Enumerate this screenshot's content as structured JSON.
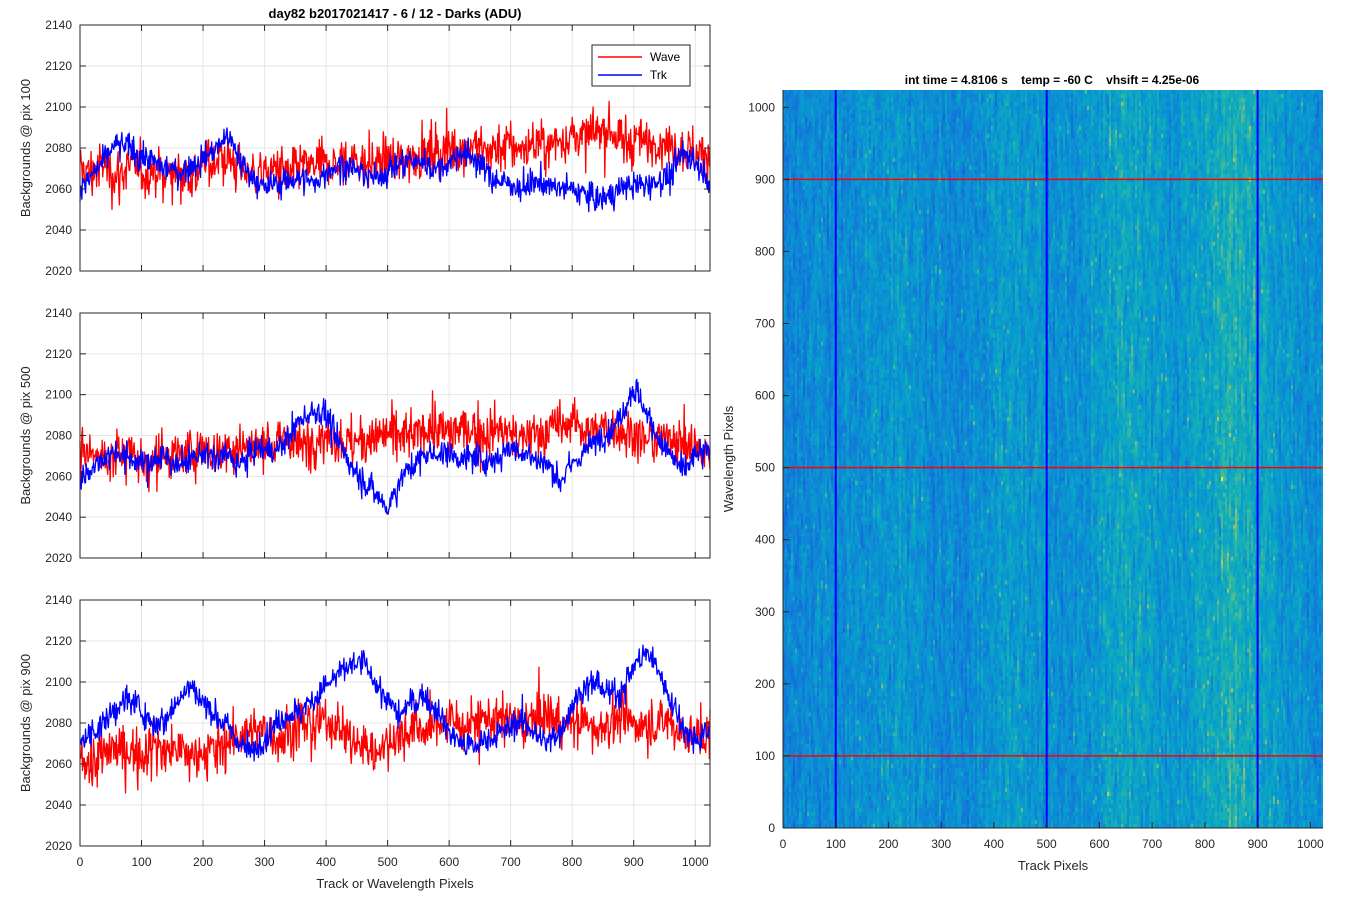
{
  "figure": {
    "main_title": "day82 b2017021417 - 6 / 12 - Darks (ADU)",
    "image_title": "int time = 4.8106 s    temp = -60 C    vhsift = 4.25e-06"
  },
  "colors": {
    "wave": "#ff0000",
    "trk": "#0000ff",
    "grid": "#e6e6e6",
    "axis": "#262626"
  },
  "chart_data": [
    {
      "type": "line",
      "title": "day82 b2017021417 - 6 / 12 - Darks (ADU)",
      "ylabel": "Backgrounds @ pix 100",
      "xlabel": "",
      "xlim": [
        0,
        1024
      ],
      "ylim": [
        2020,
        2140
      ],
      "xticks": [
        0,
        100,
        200,
        300,
        400,
        500,
        600,
        700,
        800,
        900,
        1000
      ],
      "yticks": [
        2020,
        2040,
        2060,
        2080,
        2100,
        2120,
        2140
      ],
      "show_xtick_labels": false,
      "grid": true,
      "legend": {
        "position": "top-right",
        "entries": [
          "Wave",
          "Trk"
        ]
      },
      "series": [
        {
          "name": "Wave",
          "color": "#ff0000",
          "x": [
            0,
            20,
            40,
            60,
            80,
            100,
            120,
            140,
            160,
            180,
            200,
            220,
            240,
            260,
            280,
            300,
            320,
            340,
            360,
            380,
            400,
            420,
            440,
            460,
            480,
            500,
            520,
            540,
            560,
            580,
            600,
            620,
            640,
            660,
            680,
            700,
            720,
            740,
            760,
            780,
            800,
            820,
            840,
            860,
            880,
            900,
            920,
            940,
            960,
            980,
            1000,
            1024
          ],
          "y": [
            2070,
            2068,
            2072,
            2066,
            2071,
            2068,
            2069,
            2067,
            2070,
            2066,
            2072,
            2074,
            2075,
            2070,
            2068,
            2067,
            2070,
            2066,
            2071,
            2070,
            2072,
            2071,
            2074,
            2073,
            2072,
            2074,
            2073,
            2076,
            2077,
            2078,
            2080,
            2079,
            2082,
            2078,
            2080,
            2081,
            2079,
            2083,
            2080,
            2084,
            2086,
            2085,
            2087,
            2088,
            2083,
            2085,
            2082,
            2084,
            2081,
            2080,
            2078,
            2076
          ]
        },
        {
          "name": "Trk",
          "color": "#0000ff",
          "x": [
            0,
            20,
            40,
            60,
            80,
            100,
            120,
            140,
            160,
            180,
            200,
            220,
            240,
            260,
            280,
            300,
            320,
            340,
            360,
            380,
            400,
            420,
            440,
            460,
            480,
            500,
            520,
            540,
            560,
            580,
            600,
            620,
            640,
            660,
            680,
            700,
            720,
            740,
            760,
            780,
            800,
            820,
            840,
            860,
            880,
            900,
            920,
            940,
            960,
            980,
            1000,
            1024
          ],
          "y": [
            2060,
            2066,
            2074,
            2082,
            2080,
            2076,
            2073,
            2070,
            2068,
            2071,
            2075,
            2079,
            2086,
            2074,
            2066,
            2060,
            2063,
            2064,
            2066,
            2062,
            2068,
            2072,
            2070,
            2068,
            2065,
            2069,
            2072,
            2074,
            2073,
            2069,
            2072,
            2078,
            2076,
            2068,
            2064,
            2062,
            2060,
            2064,
            2062,
            2060,
            2060,
            2058,
            2055,
            2057,
            2060,
            2062,
            2062,
            2064,
            2066,
            2078,
            2074,
            2064
          ]
        }
      ]
    },
    {
      "type": "line",
      "ylabel": "Backgrounds @ pix 500",
      "xlabel": "",
      "xlim": [
        0,
        1024
      ],
      "ylim": [
        2020,
        2140
      ],
      "xticks": [
        0,
        100,
        200,
        300,
        400,
        500,
        600,
        700,
        800,
        900,
        1000
      ],
      "yticks": [
        2020,
        2040,
        2060,
        2080,
        2100,
        2120,
        2140
      ],
      "show_xtick_labels": false,
      "grid": true,
      "series": [
        {
          "name": "Wave",
          "color": "#ff0000",
          "x": [
            0,
            20,
            40,
            60,
            80,
            100,
            120,
            140,
            160,
            180,
            200,
            220,
            240,
            260,
            280,
            300,
            320,
            340,
            360,
            380,
            400,
            420,
            440,
            460,
            480,
            500,
            520,
            540,
            560,
            580,
            600,
            620,
            640,
            660,
            680,
            700,
            720,
            740,
            760,
            780,
            800,
            820,
            840,
            860,
            880,
            900,
            920,
            940,
            960,
            980,
            1000,
            1024
          ],
          "y": [
            2070,
            2072,
            2068,
            2070,
            2073,
            2066,
            2068,
            2070,
            2069,
            2072,
            2074,
            2071,
            2073,
            2075,
            2074,
            2077,
            2076,
            2078,
            2074,
            2079,
            2080,
            2078,
            2076,
            2077,
            2079,
            2081,
            2080,
            2079,
            2082,
            2083,
            2081,
            2084,
            2082,
            2080,
            2083,
            2081,
            2078,
            2080,
            2083,
            2084,
            2086,
            2084,
            2082,
            2085,
            2083,
            2080,
            2078,
            2077,
            2080,
            2076,
            2074,
            2070
          ]
        },
        {
          "name": "Trk",
          "color": "#0000ff",
          "x": [
            0,
            20,
            40,
            60,
            80,
            100,
            120,
            140,
            160,
            180,
            200,
            220,
            240,
            260,
            280,
            300,
            320,
            340,
            360,
            380,
            400,
            420,
            440,
            460,
            480,
            500,
            520,
            540,
            560,
            580,
            600,
            620,
            640,
            660,
            680,
            700,
            720,
            740,
            760,
            780,
            800,
            820,
            840,
            860,
            880,
            900,
            920,
            940,
            960,
            980,
            1000,
            1024
          ],
          "y": [
            2058,
            2064,
            2070,
            2072,
            2068,
            2066,
            2068,
            2070,
            2065,
            2068,
            2071,
            2069,
            2070,
            2066,
            2072,
            2073,
            2072,
            2080,
            2088,
            2092,
            2090,
            2076,
            2066,
            2058,
            2052,
            2044,
            2058,
            2066,
            2070,
            2071,
            2072,
            2068,
            2070,
            2066,
            2070,
            2074,
            2072,
            2068,
            2066,
            2058,
            2066,
            2072,
            2078,
            2082,
            2090,
            2104,
            2092,
            2078,
            2070,
            2062,
            2070,
            2072
          ]
        }
      ]
    },
    {
      "type": "line",
      "ylabel": "Backgrounds @ pix 900",
      "xlabel": "Track or Wavelength Pixels",
      "xlim": [
        0,
        1024
      ],
      "ylim": [
        2020,
        2140
      ],
      "xticks": [
        0,
        100,
        200,
        300,
        400,
        500,
        600,
        700,
        800,
        900,
        1000
      ],
      "yticks": [
        2020,
        2040,
        2060,
        2080,
        2100,
        2120,
        2140
      ],
      "show_xtick_labels": true,
      "grid": true,
      "series": [
        {
          "name": "Wave",
          "color": "#ff0000",
          "x": [
            0,
            20,
            40,
            60,
            80,
            100,
            120,
            140,
            160,
            180,
            200,
            220,
            240,
            260,
            280,
            300,
            320,
            340,
            360,
            380,
            400,
            420,
            440,
            460,
            480,
            500,
            520,
            540,
            560,
            580,
            600,
            620,
            640,
            660,
            680,
            700,
            720,
            740,
            760,
            780,
            800,
            820,
            840,
            860,
            880,
            900,
            920,
            940,
            960,
            980,
            1000,
            1024
          ],
          "y": [
            2064,
            2060,
            2065,
            2068,
            2066,
            2064,
            2070,
            2066,
            2068,
            2063,
            2066,
            2068,
            2072,
            2075,
            2074,
            2078,
            2072,
            2076,
            2080,
            2078,
            2081,
            2078,
            2072,
            2068,
            2066,
            2070,
            2074,
            2078,
            2076,
            2079,
            2082,
            2078,
            2080,
            2083,
            2081,
            2080,
            2078,
            2082,
            2084,
            2080,
            2079,
            2080,
            2078,
            2080,
            2082,
            2080,
            2078,
            2079,
            2080,
            2076,
            2074,
            2072
          ]
        },
        {
          "name": "Trk",
          "color": "#0000ff",
          "x": [
            0,
            20,
            40,
            60,
            80,
            100,
            120,
            140,
            160,
            180,
            200,
            220,
            240,
            260,
            280,
            300,
            320,
            340,
            360,
            380,
            400,
            420,
            440,
            460,
            480,
            500,
            520,
            540,
            560,
            580,
            600,
            620,
            640,
            660,
            680,
            700,
            720,
            740,
            760,
            780,
            800,
            820,
            840,
            860,
            880,
            900,
            920,
            940,
            960,
            980,
            1000,
            1024
          ],
          "y": [
            2070,
            2076,
            2080,
            2088,
            2092,
            2086,
            2080,
            2082,
            2092,
            2098,
            2090,
            2084,
            2078,
            2070,
            2066,
            2072,
            2080,
            2084,
            2086,
            2092,
            2098,
            2104,
            2108,
            2110,
            2100,
            2090,
            2084,
            2090,
            2094,
            2086,
            2076,
            2070,
            2068,
            2072,
            2074,
            2078,
            2082,
            2074,
            2070,
            2076,
            2088,
            2098,
            2100,
            2094,
            2096,
            2108,
            2114,
            2106,
            2092,
            2078,
            2072,
            2076
          ]
        }
      ]
    },
    {
      "type": "heatmap",
      "title": "int time = 4.8106 s    temp = -60 C    vhsift = 4.25e-06",
      "xlabel": "Track Pixels",
      "ylabel": "Wavelength Pixels",
      "xlim": [
        0,
        1024
      ],
      "ylim": [
        0,
        1024
      ],
      "xticks": [
        0,
        100,
        200,
        300,
        400,
        500,
        600,
        700,
        800,
        900,
        1000
      ],
      "yticks": [
        0,
        100,
        200,
        300,
        400,
        500,
        600,
        700,
        800,
        900,
        1000
      ],
      "colormap": "parula",
      "description_values": "dark frame, values approx 2040-2120 ADU",
      "column_intensity": [
        0.3,
        0.32,
        0.34,
        0.36,
        0.38,
        0.36,
        0.4,
        0.42,
        0.45,
        0.44,
        0.46,
        0.48,
        0.44,
        0.42,
        0.4,
        0.38,
        0.36,
        0.35,
        0.38,
        0.42,
        0.48,
        0.52,
        0.5,
        0.48,
        0.46,
        0.44,
        0.42,
        0.4,
        0.42,
        0.46,
        0.52,
        0.58,
        0.62,
        0.6,
        0.56,
        0.52,
        0.5,
        0.48,
        0.52,
        0.56,
        0.6,
        0.66,
        0.7,
        0.72,
        0.68,
        0.62,
        0.56,
        0.5,
        0.46,
        0.44,
        0.42,
        0.4
      ],
      "vertical_lines": [
        {
          "x": 100,
          "color": "#0000ff"
        },
        {
          "x": 500,
          "color": "#0000ff"
        },
        {
          "x": 900,
          "color": "#0000ff"
        }
      ],
      "horizontal_lines": [
        {
          "y": 100,
          "color": "#ff0000"
        },
        {
          "y": 500,
          "color": "#ff0000"
        },
        {
          "y": 900,
          "color": "#ff0000"
        }
      ]
    }
  ]
}
